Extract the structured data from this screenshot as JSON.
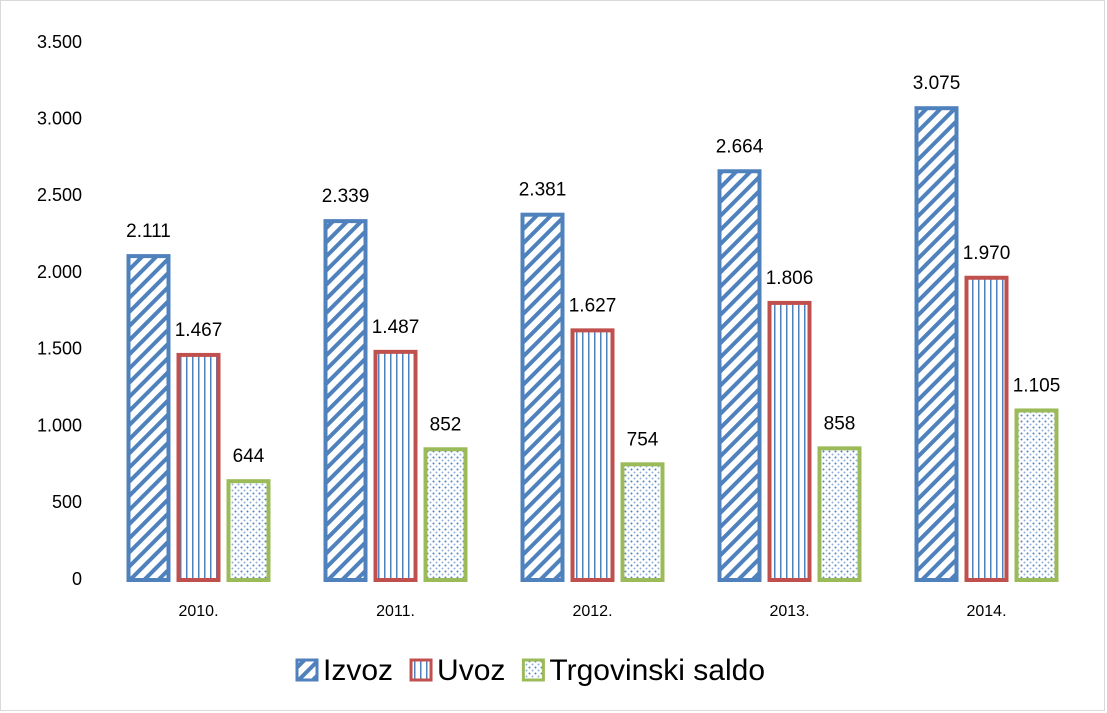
{
  "chart_data": {
    "type": "bar",
    "categories": [
      "2010.",
      "2011.",
      "2012.",
      "2013.",
      "2014."
    ],
    "series": [
      {
        "name": "Izvoz",
        "color": "#4f81bd",
        "values": [
          2111,
          2339,
          2381,
          2664,
          3075
        ],
        "value_labels": [
          "2.111",
          "2.339",
          "2.381",
          "2.664",
          "3.075"
        ]
      },
      {
        "name": "Uvoz",
        "color": "#c0504d",
        "values": [
          1467,
          1487,
          1627,
          1806,
          1970
        ],
        "value_labels": [
          "1.467",
          "1.487",
          "1.627",
          "1.806",
          "1.970"
        ]
      },
      {
        "name": "Trgovinski saldo",
        "color": "#9bbb59",
        "values": [
          644,
          852,
          754,
          858,
          1105
        ],
        "value_labels": [
          "644",
          "852",
          "754",
          "858",
          "1.105"
        ]
      }
    ],
    "ylim": [
      0,
      3500
    ],
    "yticks": [
      0,
      500,
      {
        "value": 1000,
        "label": "1.000"
      },
      {
        "value": 1500,
        "label": "1.500"
      },
      {
        "value": 2000,
        "label": "2.000"
      },
      {
        "value": 2500,
        "label": "2.500"
      },
      {
        "value": 3000,
        "label": "3.000"
      },
      {
        "value": 3500,
        "label": "3.500"
      }
    ],
    "grid": false,
    "legend": "bottom"
  }
}
